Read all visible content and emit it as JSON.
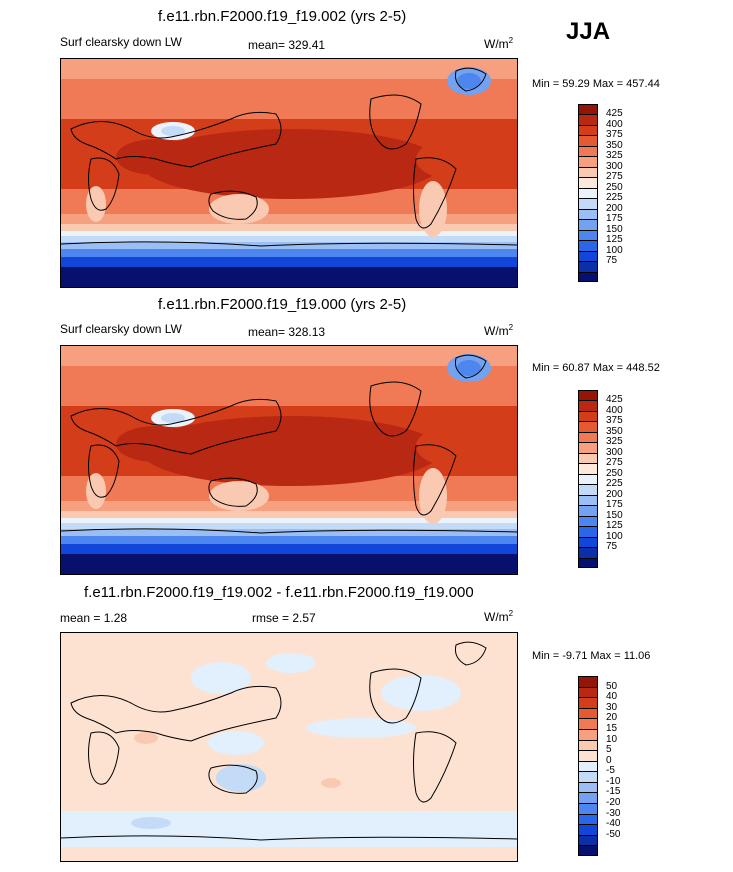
{
  "season": "JJA",
  "panels": [
    {
      "title": "f.e11.rbn.F2000.f19_f19.002 (yrs 2-5)",
      "left_label": "Surf clearsky down LW",
      "center_label": "mean= 329.41",
      "units_base": "W/m",
      "units_sup": "2",
      "minmax": "Min =  59.29 Max = 457.44"
    },
    {
      "title": "f.e11.rbn.F2000.f19_f19.000 (yrs 2-5)",
      "left_label": "Surf clearsky down LW",
      "center_label": "mean= 328.13",
      "units_base": "W/m",
      "units_sup": "2",
      "minmax": "Min =  60.87 Max = 448.52"
    },
    {
      "title": "f.e11.rbn.F2000.f19_f19.002 - f.e11.rbn.F2000.f19_f19.000",
      "left_label": "mean =   1.28",
      "center_label": "rmse =   2.57",
      "units_base": "W/m",
      "units_sup": "2",
      "minmax": "Min =  -9.71 Max =  11.06"
    }
  ],
  "colors": {
    "abs_scale": [
      "#08106e",
      "#0c2fa8",
      "#1146d8",
      "#2a66e8",
      "#4d86ee",
      "#73a2f0",
      "#9bbff4",
      "#c4dbf8",
      "#eaf3fc",
      "#fde8dc",
      "#fac9b1",
      "#f6a07f",
      "#ef7a55",
      "#e65a33",
      "#d43d1a",
      "#b92812",
      "#951506"
    ],
    "diff_scale": [
      "#08106e",
      "#0c2fa8",
      "#1146d8",
      "#2a66e8",
      "#4d86ee",
      "#73a2f0",
      "#9bbff4",
      "#c4dbf8",
      "#e2effc",
      "#fde2d2",
      "#fac9b1",
      "#f6a07f",
      "#ef7a55",
      "#e65a33",
      "#d43d1a",
      "#b92812",
      "#951506"
    ]
  },
  "chart_data": [
    {
      "type": "heatmap",
      "title": "f.e11.rbn.F2000.f19_f19.002 (yrs 2-5)",
      "variable": "Surf clearsky down LW",
      "units": "W/m2",
      "mean": 329.41,
      "min": 59.29,
      "max": 457.44,
      "contour_levels": [
        425,
        400,
        375,
        350,
        325,
        300,
        275,
        250,
        225,
        200,
        175,
        150,
        125,
        100,
        75
      ]
    },
    {
      "type": "heatmap",
      "title": "f.e11.rbn.F2000.f19_f19.000 (yrs 2-5)",
      "variable": "Surf clearsky down LW",
      "units": "W/m2",
      "mean": 328.13,
      "min": 60.87,
      "max": 448.52,
      "contour_levels": [
        425,
        400,
        375,
        350,
        325,
        300,
        275,
        250,
        225,
        200,
        175,
        150,
        125,
        100,
        75
      ]
    },
    {
      "type": "heatmap",
      "title": "f.e11.rbn.F2000.f19_f19.002 - f.e11.rbn.F2000.f19_f19.000",
      "units": "W/m2",
      "mean": 1.28,
      "rmse": 2.57,
      "min": -9.71,
      "max": 11.06,
      "contour_levels": [
        50,
        40,
        30,
        20,
        15,
        10,
        5,
        0,
        -5,
        -10,
        -15,
        -20,
        -30,
        -40,
        -50
      ]
    }
  ]
}
